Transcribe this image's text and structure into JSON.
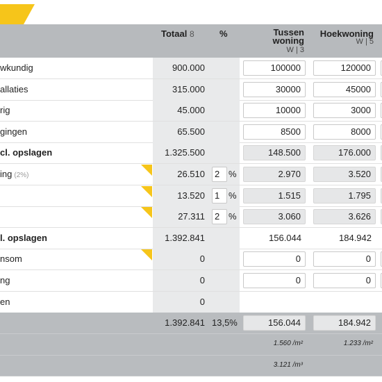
{
  "header": {
    "total_title": "Totaal",
    "total_count": "8",
    "percent_title": "%",
    "columns": [
      {
        "title": "Tussen woning",
        "sub": "W | 3"
      },
      {
        "title": "Hoekwoning",
        "sub": "W | 5"
      }
    ]
  },
  "rows": [
    {
      "label": "wkundig",
      "total": "900.000",
      "values": [
        "100000",
        "120000"
      ]
    },
    {
      "label": "allaties",
      "total": "315.000",
      "values": [
        "30000",
        "45000"
      ]
    },
    {
      "label": "rig",
      "total": "45.000",
      "values": [
        "10000",
        "3000"
      ]
    },
    {
      "label": "gingen",
      "total": "65.500",
      "values": [
        "8500",
        "8000"
      ]
    },
    {
      "label": "cl. opslagen",
      "total": "1.325.500",
      "values": [
        "148.500",
        "176.000"
      ]
    },
    {
      "label": "ing",
      "note": "(2%)",
      "total": "26.510",
      "percent": "2",
      "unit": "%",
      "values": [
        "2.970",
        "3.520"
      ]
    },
    {
      "total": "13.520",
      "percent": "1",
      "unit": "%",
      "values": [
        "1.515",
        "1.795"
      ]
    },
    {
      "total": "27.311",
      "percent": "2",
      "unit": "%",
      "values": [
        "3.060",
        "3.626"
      ]
    },
    {
      "label": "l. opslagen",
      "total": "1.392.841",
      "values": [
        "156.044",
        "184.942"
      ]
    },
    {
      "label": "nsom",
      "total": "0",
      "values": [
        "0",
        "0"
      ]
    },
    {
      "label": "ng",
      "total": "0",
      "values": [
        "0",
        "0"
      ]
    },
    {
      "label": "en",
      "total": "0"
    }
  ],
  "footer": [
    {
      "total": "1.392.841",
      "percent": "13,5%",
      "values": [
        "156.044",
        "184.942"
      ]
    },
    {
      "values": [
        "1.560 /m²",
        "1.233 /m²"
      ]
    },
    {
      "values": [
        "3.121 /m³"
      ]
    }
  ]
}
